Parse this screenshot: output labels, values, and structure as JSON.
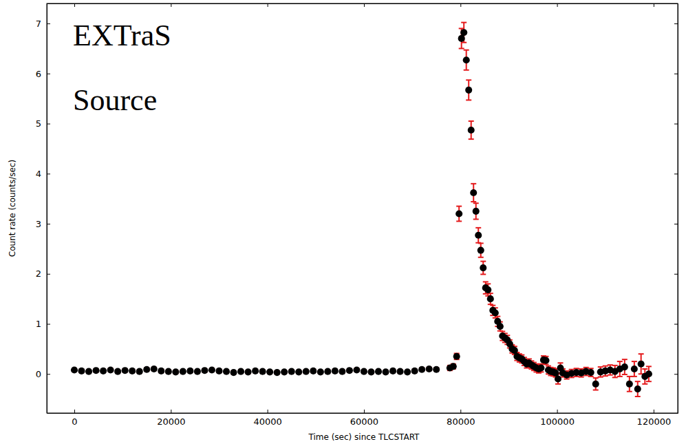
{
  "chart_data": {
    "type": "scatter",
    "annotation": "EXTraS Source",
    "x_label": "Time (sec) since TLCSTART",
    "y_label": "Count rate (counts/sec)",
    "color": "#000000",
    "marker": "circle",
    "xlim": [
      -5700,
      125000
    ],
    "ylim": [
      -0.78,
      7.4
    ],
    "xticks": [
      0,
      20000,
      40000,
      60000,
      80000,
      100000,
      120000
    ],
    "yticks": [
      0,
      1,
      2,
      3,
      4,
      5,
      6,
      7
    ],
    "x": [
      0,
      1500,
      3000,
      4500,
      6000,
      7500,
      9000,
      10500,
      12000,
      13500,
      15000,
      16500,
      18000,
      19500,
      21000,
      22500,
      24000,
      25500,
      27000,
      28500,
      30000,
      31500,
      33000,
      34500,
      36000,
      37500,
      39000,
      40500,
      42000,
      43500,
      45000,
      46500,
      48000,
      49500,
      51000,
      52500,
      54000,
      55500,
      57000,
      58500,
      60000,
      61500,
      63000,
      64500,
      66000,
      67500,
      69000,
      70500,
      72000,
      73500,
      75000,
      77800,
      78500,
      79200,
      79700,
      80200,
      80700,
      81200,
      81700,
      82200,
      82700,
      83200,
      83700,
      84200,
      84700,
      85200,
      85700,
      86200,
      86700,
      87200,
      87700,
      88200,
      88700,
      89200,
      89700,
      90200,
      90700,
      91200,
      91700,
      92200,
      92700,
      93200,
      93700,
      94200,
      94700,
      95200,
      95700,
      96200,
      96700,
      97200,
      97700,
      98200,
      98700,
      99200,
      99700,
      100200,
      100700,
      101200,
      102000,
      103000,
      104000,
      105000,
      106000,
      107000,
      108000,
      109000,
      110000,
      111000,
      112000,
      113000,
      114000,
      115000,
      116000,
      116700,
      117400,
      118200,
      119000
    ],
    "values": [
      0.08,
      0.06,
      0.05,
      0.07,
      0.06,
      0.08,
      0.05,
      0.07,
      0.06,
      0.05,
      0.09,
      0.1,
      0.06,
      0.05,
      0.04,
      0.05,
      0.06,
      0.05,
      0.07,
      0.08,
      0.06,
      0.05,
      0.03,
      0.05,
      0.04,
      0.06,
      0.05,
      0.04,
      0.03,
      0.04,
      0.05,
      0.04,
      0.05,
      0.06,
      0.04,
      0.05,
      0.06,
      0.05,
      0.07,
      0.08,
      0.05,
      0.04,
      0.05,
      0.04,
      0.06,
      0.05,
      0.04,
      0.06,
      0.09,
      0.1,
      0.09,
      0.12,
      0.15,
      0.35,
      3.2,
      6.7,
      6.82,
      6.27,
      5.67,
      4.87,
      3.62,
      3.25,
      2.77,
      2.47,
      2.12,
      1.72,
      1.68,
      1.5,
      1.27,
      1.22,
      1.05,
      0.95,
      0.76,
      0.72,
      0.68,
      0.6,
      0.5,
      0.47,
      0.35,
      0.32,
      0.3,
      0.25,
      0.2,
      0.22,
      0.18,
      0.15,
      0.12,
      0.1,
      0.12,
      0.28,
      0.27,
      0.08,
      0.05,
      0.04,
      0.02,
      -0.1,
      0.12,
      0.02,
      -0.02,
      0.01,
      0.03,
      0.02,
      0.05,
      0.03,
      -0.2,
      0.04,
      0.06,
      0.08,
      0.05,
      0.1,
      0.14,
      -0.2,
      0.1,
      -0.3,
      0.2,
      -0.05,
      0.0
    ],
    "errors": [
      0.03,
      0.03,
      0.03,
      0.03,
      0.03,
      0.03,
      0.03,
      0.03,
      0.03,
      0.03,
      0.03,
      0.03,
      0.03,
      0.03,
      0.03,
      0.03,
      0.03,
      0.03,
      0.03,
      0.03,
      0.03,
      0.03,
      0.03,
      0.03,
      0.03,
      0.03,
      0.03,
      0.03,
      0.03,
      0.03,
      0.03,
      0.03,
      0.03,
      0.03,
      0.03,
      0.03,
      0.03,
      0.03,
      0.03,
      0.03,
      0.03,
      0.03,
      0.03,
      0.03,
      0.03,
      0.03,
      0.03,
      0.03,
      0.03,
      0.03,
      0.03,
      0.05,
      0.05,
      0.06,
      0.15,
      0.2,
      0.2,
      0.2,
      0.2,
      0.18,
      0.18,
      0.16,
      0.15,
      0.14,
      0.13,
      0.12,
      0.12,
      0.11,
      0.1,
      0.1,
      0.1,
      0.09,
      0.09,
      0.09,
      0.09,
      0.08,
      0.08,
      0.08,
      0.08,
      0.08,
      0.08,
      0.08,
      0.08,
      0.08,
      0.08,
      0.08,
      0.08,
      0.08,
      0.08,
      0.08,
      0.08,
      0.08,
      0.08,
      0.08,
      0.08,
      0.1,
      0.1,
      0.08,
      0.08,
      0.08,
      0.08,
      0.08,
      0.08,
      0.08,
      0.12,
      0.1,
      0.1,
      0.1,
      0.12,
      0.15,
      0.15,
      0.15,
      0.15,
      0.15,
      0.2,
      0.15,
      0.15
    ]
  }
}
